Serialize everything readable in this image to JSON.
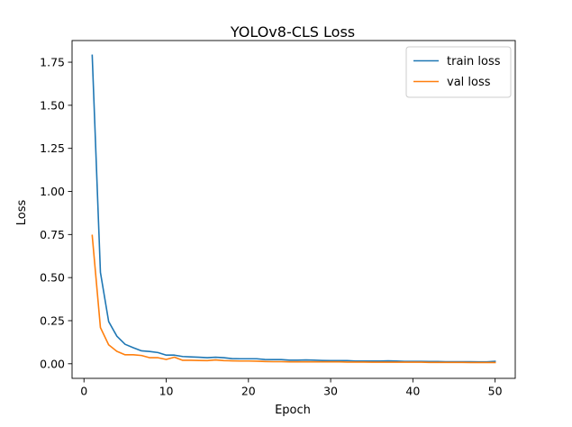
{
  "chart_data": {
    "type": "line",
    "title": "YOLOv8-CLS Loss",
    "xlabel": "Epoch",
    "ylabel": "Loss",
    "xlim": [
      -1.45,
      52.45
    ],
    "ylim": [
      -0.0847,
      1.8757
    ],
    "xticks": [
      0,
      10,
      20,
      30,
      40,
      50
    ],
    "yticks": [
      0.0,
      0.25,
      0.5,
      0.75,
      1.0,
      1.25,
      1.5,
      1.75
    ],
    "xtick_labels": [
      "0",
      "10",
      "20",
      "30",
      "40",
      "50"
    ],
    "ytick_labels": [
      "0.00",
      "0.25",
      "0.50",
      "0.75",
      "1.00",
      "1.25",
      "1.50",
      "1.75"
    ],
    "grid": false,
    "legend_position": "top-right",
    "x": [
      1,
      2,
      3,
      4,
      5,
      6,
      7,
      8,
      9,
      10,
      11,
      12,
      13,
      14,
      15,
      16,
      17,
      18,
      19,
      20,
      21,
      22,
      23,
      24,
      25,
      26,
      27,
      28,
      29,
      30,
      31,
      32,
      33,
      34,
      35,
      36,
      37,
      38,
      39,
      40,
      41,
      42,
      43,
      44,
      45,
      46,
      47,
      48,
      49,
      50
    ],
    "series": [
      {
        "name": "train loss",
        "color": "#1f77b4",
        "values": [
          1.79,
          0.53,
          0.245,
          0.16,
          0.113,
          0.093,
          0.075,
          0.071,
          0.065,
          0.05,
          0.05,
          0.042,
          0.04,
          0.038,
          0.035,
          0.038,
          0.035,
          0.03,
          0.029,
          0.029,
          0.029,
          0.025,
          0.024,
          0.024,
          0.021,
          0.021,
          0.022,
          0.021,
          0.019,
          0.018,
          0.018,
          0.018,
          0.016,
          0.016,
          0.016,
          0.016,
          0.017,
          0.016,
          0.014,
          0.014,
          0.014,
          0.013,
          0.013,
          0.012,
          0.012,
          0.012,
          0.012,
          0.011,
          0.011,
          0.014
        ]
      },
      {
        "name": "val loss",
        "color": "#ff7f0e",
        "values": [
          0.745,
          0.21,
          0.11,
          0.072,
          0.052,
          0.052,
          0.048,
          0.035,
          0.035,
          0.025,
          0.038,
          0.02,
          0.02,
          0.019,
          0.018,
          0.022,
          0.018,
          0.017,
          0.016,
          0.016,
          0.015,
          0.013,
          0.012,
          0.012,
          0.011,
          0.011,
          0.011,
          0.011,
          0.011,
          0.011,
          0.011,
          0.01,
          0.01,
          0.01,
          0.009,
          0.009,
          0.009,
          0.009,
          0.009,
          0.009,
          0.009,
          0.008,
          0.008,
          0.008,
          0.008,
          0.008,
          0.007,
          0.007,
          0.007,
          0.007
        ]
      }
    ]
  }
}
